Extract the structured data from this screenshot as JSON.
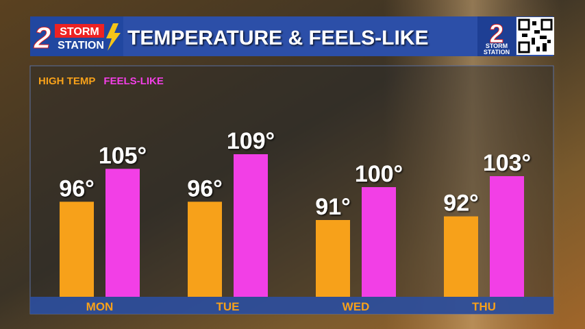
{
  "logo": {
    "number": "2",
    "line1": "STORM",
    "line2": "STATION"
  },
  "corner_logo": {
    "number": "2",
    "line1": "STORM",
    "line2": "STATION"
  },
  "chart_data": {
    "type": "bar",
    "title": "TEMPERATURE & FEELS-LIKE",
    "categories": [
      "MON",
      "TUE",
      "WED",
      "THU"
    ],
    "series": [
      {
        "name": "HIGH TEMP",
        "color": "#f7a11a",
        "values": [
          96,
          96,
          91,
          92
        ],
        "value_labels": [
          "96°",
          "96°",
          "91°",
          "92°"
        ]
      },
      {
        "name": "FEELS-LIKE",
        "color": "#f23fe6",
        "values": [
          105,
          109,
          100,
          103
        ],
        "value_labels": [
          "105°",
          "109°",
          "100°",
          "103°"
        ]
      }
    ],
    "ylim": [
      70,
      130
    ],
    "grid": false,
    "legend": "top-left"
  }
}
